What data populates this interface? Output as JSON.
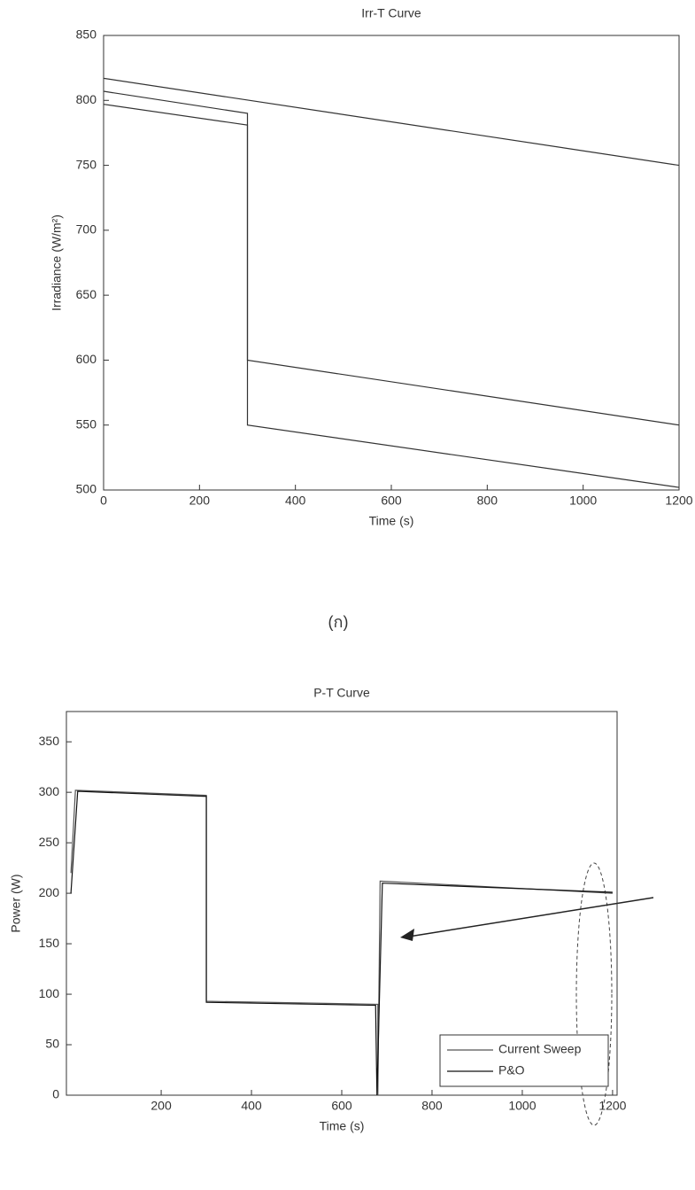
{
  "chart_data": [
    {
      "type": "line",
      "title": "Irr-T Curve",
      "x_label": "Time (s)",
      "y_label": "Irradiance (W/m²)",
      "xlim": [
        0,
        1200
      ],
      "xticks": [
        0,
        200,
        400,
        600,
        800,
        1000,
        1200
      ],
      "ylim": [
        500,
        850
      ],
      "yticks": [
        500,
        550,
        600,
        650,
        700,
        750,
        800,
        850
      ],
      "grid": false,
      "series": [
        {
          "color": "#333333",
          "x": [
            0,
            1200
          ],
          "values": [
            817,
            750
          ]
        },
        {
          "color": "#333333",
          "x": [
            0,
            300,
            300,
            1200
          ],
          "values": [
            807,
            790,
            600,
            550
          ]
        },
        {
          "color": "#333333",
          "x": [
            0,
            300,
            300,
            1200
          ],
          "values": [
            797,
            781,
            550,
            502
          ]
        }
      ]
    },
    {
      "type": "line",
      "title": "P-T Curve",
      "caption": "(ก)",
      "x_label": "Time (s)",
      "y_label": "Power (W)",
      "xlim": [
        -10,
        1210
      ],
      "xticks": [
        200,
        400,
        600,
        800,
        1000,
        1200
      ],
      "ylim": [
        0,
        380
      ],
      "yticks": [
        0,
        50,
        100,
        150,
        200,
        250,
        300,
        350
      ],
      "grid": false,
      "legend": "lower-right",
      "series": [
        {
          "name": "Current Sweep",
          "color": "#555555",
          "x": [
            0,
            10,
            300,
            300,
            680,
            680,
            685,
            1200
          ],
          "values": [
            220,
            302,
            297,
            93,
            90,
            0,
            212,
            200
          ]
        },
        {
          "name": "P&O",
          "color": "#111111",
          "x": [
            0,
            15,
            300,
            300,
            675,
            678,
            690,
            1200
          ],
          "values": [
            200,
            301,
            296,
            92,
            89,
            0,
            210,
            201
          ]
        }
      ]
    }
  ]
}
